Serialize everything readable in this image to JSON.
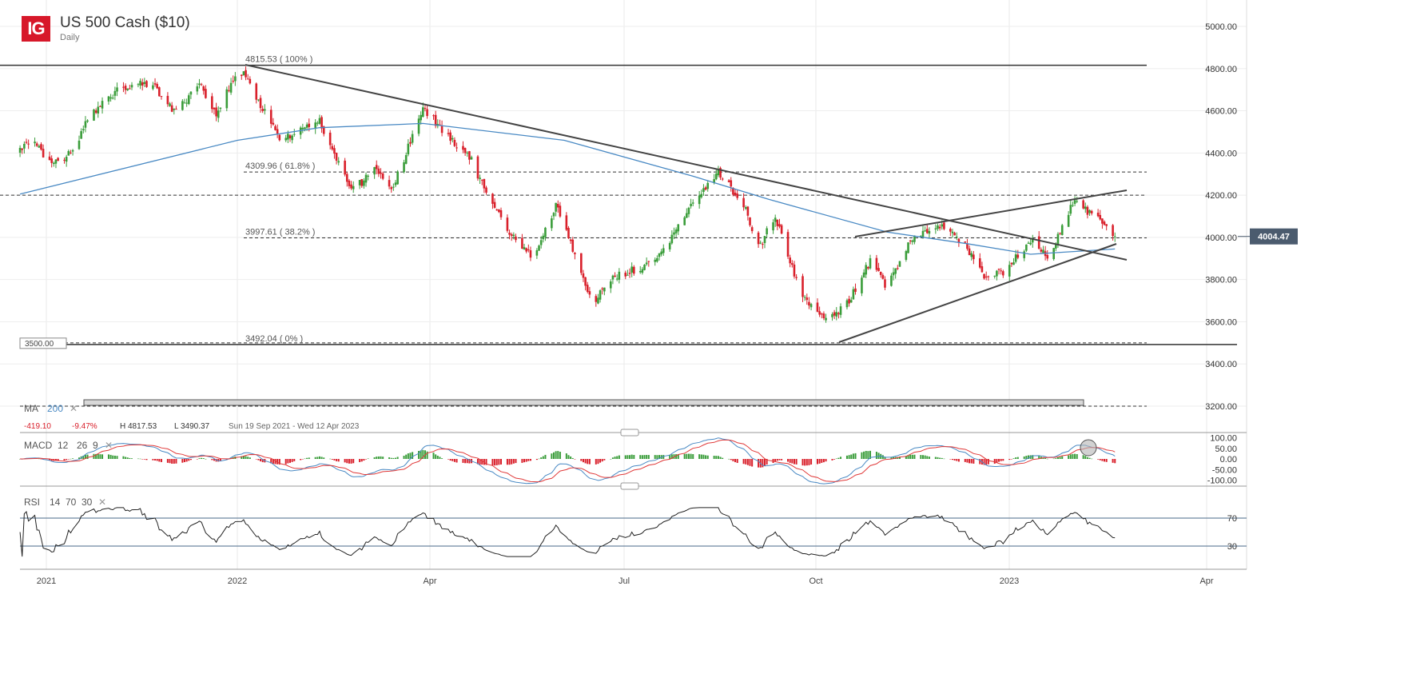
{
  "header": {
    "logo": "IG",
    "title": "US 500 Cash ($10)",
    "timeframe": "Daily"
  },
  "colors": {
    "up": "#3a9d3a",
    "down": "#d9202b",
    "ma": "#4a8ac4",
    "macd": "#4a8ac4",
    "signal": "#e03a3a",
    "last_price_bg": "#4b5b6e",
    "logo": "#d7182a"
  },
  "main_panel": {
    "last_price": "4004.47",
    "price_level_box": "3500.00",
    "fib_labels": [
      "4815.53 ( 100% )",
      "4309.96 ( 61.8% )",
      "3997.61 ( 38.2% )",
      "3492.04 ( 0% )"
    ],
    "ma_legend": {
      "label": "MA",
      "period": "200",
      "close": "✕"
    },
    "stats": {
      "change": "-419.10",
      "change_pct": "-9.47%",
      "high": "H 4817.53",
      "low": "L 3490.37",
      "range": "Sun 19 Sep 2021 - Wed 12 Apr 2023"
    }
  },
  "macd_panel": {
    "label": "MACD",
    "params": [
      "12",
      "26",
      "9"
    ],
    "close": "✕",
    "ticks": [
      "100.00",
      "50.00",
      "0.00",
      "-50.00",
      "-100.00"
    ]
  },
  "rsi_panel": {
    "label": "RSI",
    "params": [
      "14",
      "70",
      "30"
    ],
    "close": "✕",
    "ticks": [
      "70",
      "30"
    ]
  },
  "chart_data": {
    "type": "candlestick",
    "title": "US 500 Cash ($10)",
    "y_ticks": [
      "5000.00",
      "4800.00",
      "4600.00",
      "4400.00",
      "4200.00",
      "4000.00",
      "3800.00",
      "3600.00",
      "3400.00",
      "3200.00"
    ],
    "ylim": [
      3200,
      5000
    ],
    "x_ticks": [
      "2021",
      "2022",
      "Apr",
      "Jul",
      "Oct",
      "2023",
      "Apr"
    ],
    "grid": true,
    "close_path": [
      [
        "2021-09-20",
        4405
      ],
      [
        "2021-09-26",
        4460
      ],
      [
        "2021-10-05",
        4350
      ],
      [
        "2021-10-15",
        4400
      ],
      [
        "2021-10-22",
        4555
      ],
      [
        "2021-11-06",
        4710
      ],
      [
        "2021-11-21",
        4730
      ],
      [
        "2021-12-03",
        4590
      ],
      [
        "2021-12-14",
        4730
      ],
      [
        "2021-12-22",
        4590
      ],
      [
        "2022-01-02",
        4800
      ],
      [
        "2022-01-10",
        4670
      ],
      [
        "2022-01-21",
        4460
      ],
      [
        "2022-02-01",
        4520
      ],
      [
        "2022-02-09",
        4555
      ],
      [
        "2022-02-24",
        4215
      ],
      [
        "2022-03-08",
        4330
      ],
      [
        "2022-03-15",
        4215
      ],
      [
        "2022-03-30",
        4615
      ],
      [
        "2022-04-11",
        4480
      ],
      [
        "2022-04-22",
        4370
      ],
      [
        "2022-04-30",
        4180
      ],
      [
        "2022-05-15",
        3950
      ],
      [
        "2022-05-22",
        3910
      ],
      [
        "2022-06-01",
        4160
      ],
      [
        "2022-06-10",
        3910
      ],
      [
        "2022-06-18",
        3685
      ],
      [
        "2022-06-29",
        3820
      ],
      [
        "2022-07-11",
        3855
      ],
      [
        "2022-07-18",
        3875
      ],
      [
        "2022-08-02",
        4120
      ],
      [
        "2022-08-17",
        4310
      ],
      [
        "2022-08-29",
        4160
      ],
      [
        "2022-09-05",
        3950
      ],
      [
        "2022-09-13",
        4100
      ],
      [
        "2022-09-20",
        3875
      ],
      [
        "2022-09-28",
        3685
      ],
      [
        "2022-10-09",
        3610
      ],
      [
        "2022-10-17",
        3685
      ],
      [
        "2022-10-28",
        3890
      ],
      [
        "2022-11-05",
        3760
      ],
      [
        "2022-11-16",
        3990
      ],
      [
        "2022-12-01",
        4065
      ],
      [
        "2022-12-13",
        3950
      ],
      [
        "2022-12-20",
        3820
      ],
      [
        "2022-12-31",
        3840
      ],
      [
        "2023-01-12",
        3990
      ],
      [
        "2023-01-20",
        3910
      ],
      [
        "2023-01-27",
        4045
      ],
      [
        "2023-02-02",
        4180
      ],
      [
        "2023-02-11",
        4100
      ],
      [
        "2023-02-21",
        4005
      ]
    ],
    "ma200": [
      [
        "2021-09-20",
        4205
      ],
      [
        "2022-01-01",
        4460
      ],
      [
        "2022-02-09",
        4520
      ],
      [
        "2022-03-30",
        4540
      ],
      [
        "2022-06-05",
        4460
      ],
      [
        "2022-08-05",
        4290
      ],
      [
        "2022-09-10",
        4180
      ],
      [
        "2022-11-05",
        4025
      ],
      [
        "2022-12-13",
        3970
      ],
      [
        "2023-01-12",
        3920
      ],
      [
        "2023-02-21",
        3945
      ]
    ],
    "levels": {
      "fib_100": 4815.53,
      "fib_618": 4309.96,
      "resistance": 4200,
      "fib_382": 3997.61,
      "support": 3500,
      "fib_0": 3492.04,
      "lower": 3200
    }
  }
}
